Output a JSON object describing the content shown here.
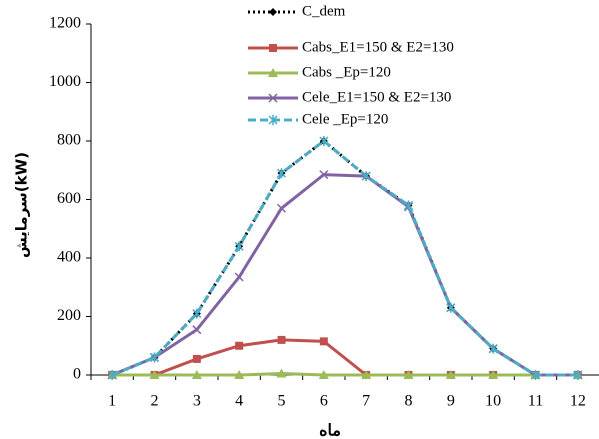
{
  "chart_data": {
    "type": "line",
    "x_label": "ماه",
    "y_label": "سرمایش(kW)",
    "categories": [
      "1",
      "2",
      "3",
      "4",
      "5",
      "6",
      "7",
      "8",
      "9",
      "10",
      "11",
      "12"
    ],
    "ylim": [
      0,
      1200
    ],
    "yticks": [
      0,
      200,
      400,
      600,
      800,
      1000,
      1200
    ],
    "grid": false,
    "legend": "top",
    "series": [
      {
        "name": "C_dem",
        "color": "#000000",
        "dash": "dotted",
        "marker": "diamond",
        "values": [
          0,
          60,
          210,
          440,
          690,
          800,
          680,
          580,
          230,
          90,
          0,
          0
        ]
      },
      {
        "name": "Cabs_E1=150 & E2=130",
        "color": "#c0504d",
        "dash": "solid",
        "marker": "square",
        "values": [
          0,
          0,
          55,
          100,
          120,
          115,
          0,
          0,
          0,
          0,
          0,
          0
        ]
      },
      {
        "name": "Cabs _Ep=120",
        "color": "#9bbb59",
        "dash": "solid",
        "marker": "triangle",
        "values": [
          0,
          0,
          0,
          0,
          5,
          0,
          0,
          0,
          0,
          0,
          0,
          0
        ]
      },
      {
        "name": "Cele_E1=150 & E2=130",
        "color": "#8064a2",
        "dash": "solid",
        "marker": "x",
        "values": [
          0,
          60,
          155,
          335,
          570,
          685,
          680,
          575,
          230,
          90,
          0,
          0
        ]
      },
      {
        "name": "Cele _Ep=120",
        "color": "#4bacc6",
        "dash": "dashed",
        "marker": "star",
        "values": [
          0,
          60,
          210,
          440,
          690,
          800,
          680,
          580,
          230,
          90,
          0,
          0
        ]
      }
    ]
  }
}
